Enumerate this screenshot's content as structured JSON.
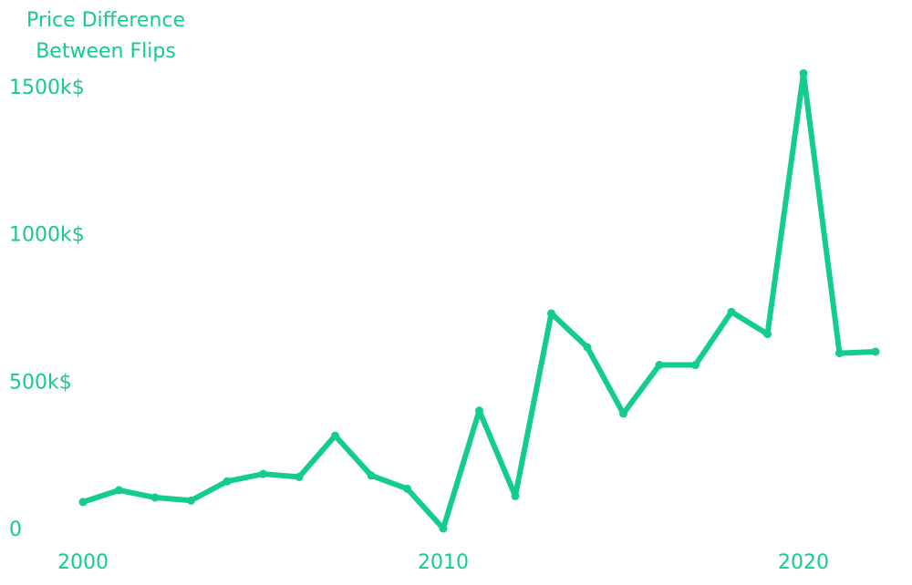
{
  "colors": {
    "line": "#14cc8c",
    "text": "#14cc8c",
    "background": "#ffffff"
  },
  "chart_data": {
    "type": "line",
    "title_lines": [
      "Price Difference",
      "Between Flips"
    ],
    "title": "Price Difference Between Flips",
    "xlabel": "",
    "ylabel": "",
    "xlim": [
      2000,
      2022
    ],
    "ylim": [
      0,
      1500
    ],
    "x_ticks": [
      2000,
      2010,
      2020
    ],
    "x_tick_labels": [
      "2000",
      "2010",
      "2020"
    ],
    "y_ticks": [
      0,
      500,
      1000,
      1500
    ],
    "y_tick_labels": [
      "0",
      "500k$",
      "1000k$",
      "1500k$"
    ],
    "grid": false,
    "series": [
      {
        "name": "Price Difference Between Flips",
        "x": [
          2000,
          2001,
          2002,
          2003,
          2004,
          2005,
          2006,
          2007,
          2008,
          2009,
          2010,
          2011,
          2012,
          2013,
          2014,
          2015,
          2016,
          2017,
          2018,
          2019,
          2020,
          2021,
          2022
        ],
        "values": [
          90,
          130,
          105,
          95,
          160,
          185,
          175,
          315,
          180,
          135,
          0,
          400,
          110,
          730,
          615,
          390,
          555,
          555,
          735,
          660,
          1545,
          595,
          600
        ]
      }
    ]
  }
}
